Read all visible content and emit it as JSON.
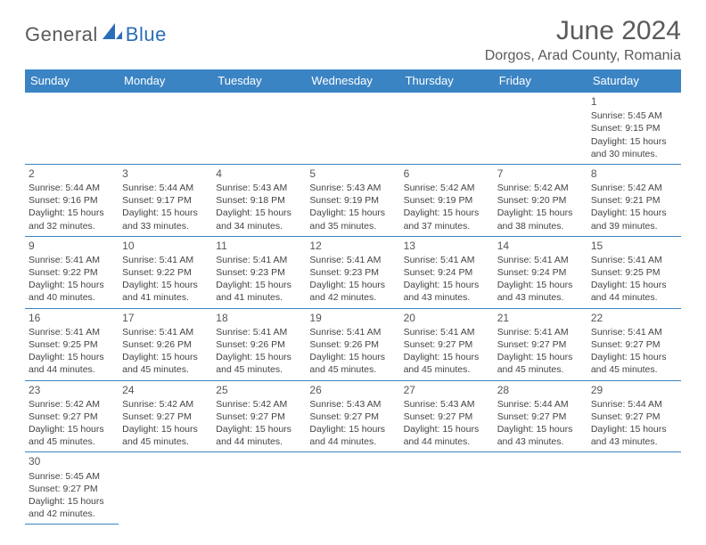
{
  "brand": {
    "part1": "General",
    "part2": "Blue"
  },
  "title": "June 2024",
  "location": "Dorgos, Arad County, Romania",
  "colors": {
    "header_bg": "#3b84c4",
    "header_fg": "#ffffff",
    "border": "#3b84c4",
    "text": "#444444",
    "title": "#5a5a5a",
    "brand_gray": "#5a5a5a",
    "brand_blue": "#2a6db8",
    "page_bg": "#ffffff"
  },
  "typography": {
    "title_fontsize": 30,
    "location_fontsize": 16,
    "dayheader_fontsize": 13,
    "cell_fontsize": 10.5,
    "daynum_fontsize": 12
  },
  "day_headers": [
    "Sunday",
    "Monday",
    "Tuesday",
    "Wednesday",
    "Thursday",
    "Friday",
    "Saturday"
  ],
  "weeks": [
    [
      null,
      null,
      null,
      null,
      null,
      null,
      {
        "n": "1",
        "sr": "Sunrise: 5:45 AM",
        "ss": "Sunset: 9:15 PM",
        "d1": "Daylight: 15 hours",
        "d2": "and 30 minutes."
      }
    ],
    [
      {
        "n": "2",
        "sr": "Sunrise: 5:44 AM",
        "ss": "Sunset: 9:16 PM",
        "d1": "Daylight: 15 hours",
        "d2": "and 32 minutes."
      },
      {
        "n": "3",
        "sr": "Sunrise: 5:44 AM",
        "ss": "Sunset: 9:17 PM",
        "d1": "Daylight: 15 hours",
        "d2": "and 33 minutes."
      },
      {
        "n": "4",
        "sr": "Sunrise: 5:43 AM",
        "ss": "Sunset: 9:18 PM",
        "d1": "Daylight: 15 hours",
        "d2": "and 34 minutes."
      },
      {
        "n": "5",
        "sr": "Sunrise: 5:43 AM",
        "ss": "Sunset: 9:19 PM",
        "d1": "Daylight: 15 hours",
        "d2": "and 35 minutes."
      },
      {
        "n": "6",
        "sr": "Sunrise: 5:42 AM",
        "ss": "Sunset: 9:19 PM",
        "d1": "Daylight: 15 hours",
        "d2": "and 37 minutes."
      },
      {
        "n": "7",
        "sr": "Sunrise: 5:42 AM",
        "ss": "Sunset: 9:20 PM",
        "d1": "Daylight: 15 hours",
        "d2": "and 38 minutes."
      },
      {
        "n": "8",
        "sr": "Sunrise: 5:42 AM",
        "ss": "Sunset: 9:21 PM",
        "d1": "Daylight: 15 hours",
        "d2": "and 39 minutes."
      }
    ],
    [
      {
        "n": "9",
        "sr": "Sunrise: 5:41 AM",
        "ss": "Sunset: 9:22 PM",
        "d1": "Daylight: 15 hours",
        "d2": "and 40 minutes."
      },
      {
        "n": "10",
        "sr": "Sunrise: 5:41 AM",
        "ss": "Sunset: 9:22 PM",
        "d1": "Daylight: 15 hours",
        "d2": "and 41 minutes."
      },
      {
        "n": "11",
        "sr": "Sunrise: 5:41 AM",
        "ss": "Sunset: 9:23 PM",
        "d1": "Daylight: 15 hours",
        "d2": "and 41 minutes."
      },
      {
        "n": "12",
        "sr": "Sunrise: 5:41 AM",
        "ss": "Sunset: 9:23 PM",
        "d1": "Daylight: 15 hours",
        "d2": "and 42 minutes."
      },
      {
        "n": "13",
        "sr": "Sunrise: 5:41 AM",
        "ss": "Sunset: 9:24 PM",
        "d1": "Daylight: 15 hours",
        "d2": "and 43 minutes."
      },
      {
        "n": "14",
        "sr": "Sunrise: 5:41 AM",
        "ss": "Sunset: 9:24 PM",
        "d1": "Daylight: 15 hours",
        "d2": "and 43 minutes."
      },
      {
        "n": "15",
        "sr": "Sunrise: 5:41 AM",
        "ss": "Sunset: 9:25 PM",
        "d1": "Daylight: 15 hours",
        "d2": "and 44 minutes."
      }
    ],
    [
      {
        "n": "16",
        "sr": "Sunrise: 5:41 AM",
        "ss": "Sunset: 9:25 PM",
        "d1": "Daylight: 15 hours",
        "d2": "and 44 minutes."
      },
      {
        "n": "17",
        "sr": "Sunrise: 5:41 AM",
        "ss": "Sunset: 9:26 PM",
        "d1": "Daylight: 15 hours",
        "d2": "and 45 minutes."
      },
      {
        "n": "18",
        "sr": "Sunrise: 5:41 AM",
        "ss": "Sunset: 9:26 PM",
        "d1": "Daylight: 15 hours",
        "d2": "and 45 minutes."
      },
      {
        "n": "19",
        "sr": "Sunrise: 5:41 AM",
        "ss": "Sunset: 9:26 PM",
        "d1": "Daylight: 15 hours",
        "d2": "and 45 minutes."
      },
      {
        "n": "20",
        "sr": "Sunrise: 5:41 AM",
        "ss": "Sunset: 9:27 PM",
        "d1": "Daylight: 15 hours",
        "d2": "and 45 minutes."
      },
      {
        "n": "21",
        "sr": "Sunrise: 5:41 AM",
        "ss": "Sunset: 9:27 PM",
        "d1": "Daylight: 15 hours",
        "d2": "and 45 minutes."
      },
      {
        "n": "22",
        "sr": "Sunrise: 5:41 AM",
        "ss": "Sunset: 9:27 PM",
        "d1": "Daylight: 15 hours",
        "d2": "and 45 minutes."
      }
    ],
    [
      {
        "n": "23",
        "sr": "Sunrise: 5:42 AM",
        "ss": "Sunset: 9:27 PM",
        "d1": "Daylight: 15 hours",
        "d2": "and 45 minutes."
      },
      {
        "n": "24",
        "sr": "Sunrise: 5:42 AM",
        "ss": "Sunset: 9:27 PM",
        "d1": "Daylight: 15 hours",
        "d2": "and 45 minutes."
      },
      {
        "n": "25",
        "sr": "Sunrise: 5:42 AM",
        "ss": "Sunset: 9:27 PM",
        "d1": "Daylight: 15 hours",
        "d2": "and 44 minutes."
      },
      {
        "n": "26",
        "sr": "Sunrise: 5:43 AM",
        "ss": "Sunset: 9:27 PM",
        "d1": "Daylight: 15 hours",
        "d2": "and 44 minutes."
      },
      {
        "n": "27",
        "sr": "Sunrise: 5:43 AM",
        "ss": "Sunset: 9:27 PM",
        "d1": "Daylight: 15 hours",
        "d2": "and 44 minutes."
      },
      {
        "n": "28",
        "sr": "Sunrise: 5:44 AM",
        "ss": "Sunset: 9:27 PM",
        "d1": "Daylight: 15 hours",
        "d2": "and 43 minutes."
      },
      {
        "n": "29",
        "sr": "Sunrise: 5:44 AM",
        "ss": "Sunset: 9:27 PM",
        "d1": "Daylight: 15 hours",
        "d2": "and 43 minutes."
      }
    ],
    [
      {
        "n": "30",
        "sr": "Sunrise: 5:45 AM",
        "ss": "Sunset: 9:27 PM",
        "d1": "Daylight: 15 hours",
        "d2": "and 42 minutes."
      },
      null,
      null,
      null,
      null,
      null,
      null
    ]
  ]
}
